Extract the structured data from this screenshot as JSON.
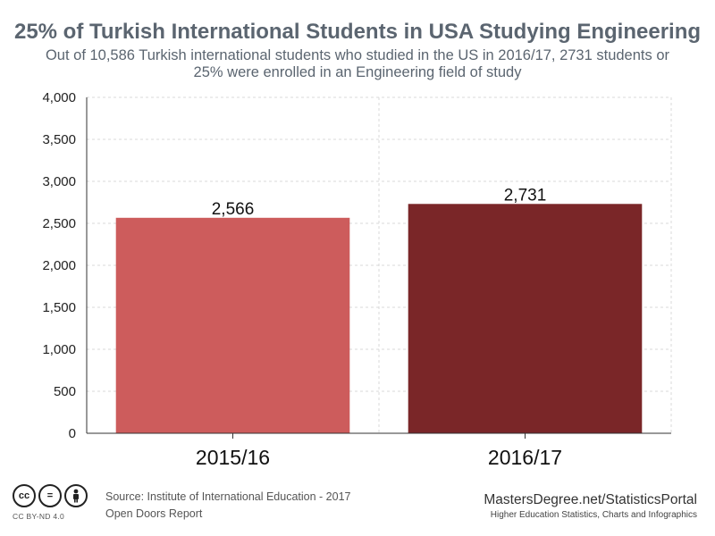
{
  "header": {
    "title": "25% of Turkish International Students in USA Studying Engineering",
    "subtitle_line1": "Out of 10,586 Turkish international students who studied in the US in 2016/17,  2731 students or",
    "subtitle_line2": "25% were enrolled in an Engineering field of study"
  },
  "chart_data": {
    "type": "bar",
    "title": "25% of Turkish International Students in USA Studying Engineering",
    "categories": [
      "2015/16",
      "2016/17"
    ],
    "values": [
      2566,
      2731
    ],
    "value_labels": [
      "2,566",
      "2,731"
    ],
    "bar_colors": [
      "#cd5c5c",
      "#7a2628"
    ],
    "ylim": [
      0,
      4000
    ],
    "yticks": [
      0,
      500,
      1000,
      1500,
      2000,
      2500,
      3000,
      3500,
      4000
    ],
    "ytick_labels": [
      "0",
      "500",
      "1,000",
      "1,500",
      "2,000",
      "2,500",
      "3,000",
      "3,500",
      "4,000"
    ],
    "grid": true,
    "legend": "none",
    "xlabel": "",
    "ylabel": ""
  },
  "footer": {
    "license_label": "CC BY-ND 4.0",
    "license_icons": [
      "cc-icon",
      "nd-equals-icon",
      "by-person-icon"
    ],
    "source_line1": "Source: Institute of International Education - 2017",
    "source_line2": "Open Doors Report",
    "brand": "MastersDegree.net/StatisticsPortal",
    "tagline": "Higher Education Statistics, Charts and Infographics"
  }
}
